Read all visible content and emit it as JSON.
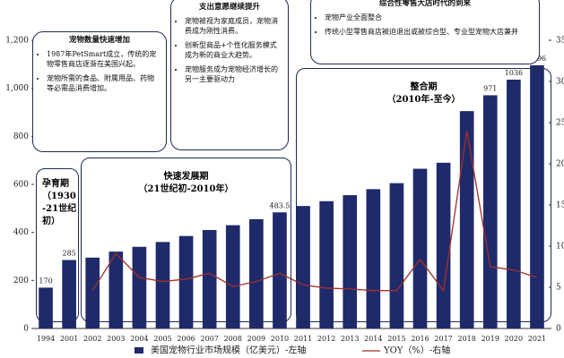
{
  "chart_data": {
    "type": "bar",
    "categories": [
      "1994",
      "2001",
      "2002",
      "2003",
      "2004",
      "2005",
      "2006",
      "2007",
      "2008",
      "2009",
      "2010",
      "2011",
      "2012",
      "2013",
      "2014",
      "2015",
      "2016",
      "2017",
      "2018",
      "2019",
      "2020",
      "2021"
    ],
    "series": [
      {
        "name": "美国宠物行业市场规模（亿美元）-左轴",
        "type": "bar",
        "color": "#1f2a6b",
        "values": [
          170,
          285,
          295,
          320,
          340,
          360,
          385,
          410,
          430,
          455,
          483.5,
          510,
          530,
          555,
          580,
          605,
          665,
          690,
          905,
          971,
          1036,
          1096
        ],
        "value_labels": [
          "170",
          "285",
          null,
          null,
          null,
          null,
          null,
          null,
          null,
          null,
          "483.5",
          null,
          null,
          null,
          null,
          null,
          null,
          null,
          null,
          "971",
          "1036",
          "1096"
        ]
      },
      {
        "name": "YOY（%）-右轴",
        "type": "line",
        "axis": "y2",
        "color": "#a0302a",
        "values": [
          null,
          null,
          4.6,
          9.1,
          6.2,
          5.7,
          6,
          6.7,
          5.1,
          5.7,
          6.7,
          5.3,
          4.9,
          4.8,
          4.6,
          4.6,
          8.4,
          4.6,
          24,
          7.5,
          7.1,
          6.2
        ]
      }
    ],
    "ylim": [
      0,
      1200
    ],
    "yticks": [
      0,
      200,
      400,
      600,
      800,
      {
        "value": 1000,
        "label": "1,000"
      },
      {
        "value": 1200,
        "label": "1,200"
      }
    ],
    "y2lim": [
      0,
      35
    ],
    "y2ticks": [
      0,
      5,
      10,
      15,
      20,
      25,
      30,
      35
    ],
    "annotations": [
      {
        "title": "宠物数量快速增加",
        "items": [
          "1987年PetSmart成立，传统的宠物零售商店逐渐在美国兴起。",
          "宠物所需的食品、附属用品、药物等必需品消费增加。"
        ]
      },
      {
        "title": "支出意愿继续提升",
        "items": [
          "宠物被视为家庭成员，宠物消费成为刚性消费。",
          "创新型商品+个性化服务模式成为新的商业大趋势。",
          "宠物服务成为宠物经济增长的另一主要驱动力"
        ]
      },
      {
        "title": "综合性零售大店时代的到来",
        "items": [
          "宠物产业全面整合",
          "传统小型零售商店被迫退出或被综合型、专业型宠物大店兼并"
        ]
      }
    ],
    "periods": [
      {
        "name": "孕育期",
        "range": "（1930-21世纪初）"
      },
      {
        "name": "快速发展期",
        "range": "（21世纪初-2010年）"
      },
      {
        "name": "整合期",
        "range": "（2010年-至今）"
      }
    ]
  }
}
